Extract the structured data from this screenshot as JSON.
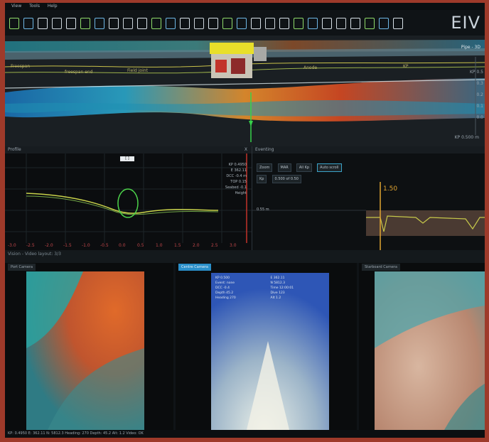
{
  "menu": [
    "View",
    "Tools",
    "Help"
  ],
  "brand": "EIV",
  "toolbar_icons": [
    "new-icon",
    "open-icon",
    "save-icon",
    "pen-icon",
    "layers-icon",
    "grid-icon",
    "list-icon",
    "export-icon",
    "tag-icon",
    "camera-icon",
    "vehicle-icon",
    "pipe-icon",
    "link-icon",
    "cloud-icon",
    "target-icon",
    "move-icon",
    "settings-icon",
    "lock-icon",
    "chart-icon",
    "flag-icon",
    "pin-icon",
    "phone-icon",
    "screen-icon",
    "play-icon",
    "forward-icon",
    "back-icon",
    "marker-icon",
    "compass-icon"
  ],
  "topview": {
    "right_labels": [
      "KP 0.5",
      "0.3",
      "0.2",
      "0.1",
      "0.0",
      "-0.1",
      "-0.2"
    ],
    "bottom_right": "KP 0.500 m",
    "overlay_texts": [
      "Freespan",
      "freespan end",
      "Field joint",
      "Anode",
      "KP"
    ],
    "corner": "Pipe - 3D"
  },
  "mid_left": {
    "title": "Profile",
    "close": "X",
    "readout": [
      "KP 0.4950",
      "E 362.11",
      "DCC -0.4 m",
      "TOP 0.15",
      "Seabed -0.1",
      "Height"
    ],
    "x_ticks": [
      "-3.0",
      "-2.5",
      "-2.0",
      "-1.5",
      "-1.0",
      "-0.5",
      "0.0",
      "0.5",
      "1.0",
      "1.5",
      "2.0",
      "2.5",
      "3.0"
    ],
    "badge": "[ ]"
  },
  "mid_right": {
    "title": "Eventing",
    "controls": [
      "Zoom",
      "MAR",
      "All Kp",
      "Auto scroll"
    ],
    "row2": [
      "Kp",
      "0.500 of 0.50"
    ],
    "cursor_label": "1.50",
    "y_label": "0.55 m"
  },
  "cam_strip": {
    "label": "Vision - Video layout: 3/3"
  },
  "cameras": [
    {
      "label": "Port Camera",
      "active": false
    },
    {
      "label": "Centre Camera",
      "active": true
    },
    {
      "label": "Starboard Camera",
      "active": false
    }
  ],
  "centre_cam_overlay": [
    "KP 0.500",
    "Event: none",
    "DCC -0.4",
    "Depth 45.2",
    "Heading 270",
    "E 362.11",
    "N 5812.3",
    "Time 12:00:01",
    "Dive 123",
    "Alt 1.2"
  ],
  "status": "KP: 0.4950 E: 362.11 N: 5812.3 Heading: 270 Depth: 45.2 Alt: 1.2 Video: OK"
}
